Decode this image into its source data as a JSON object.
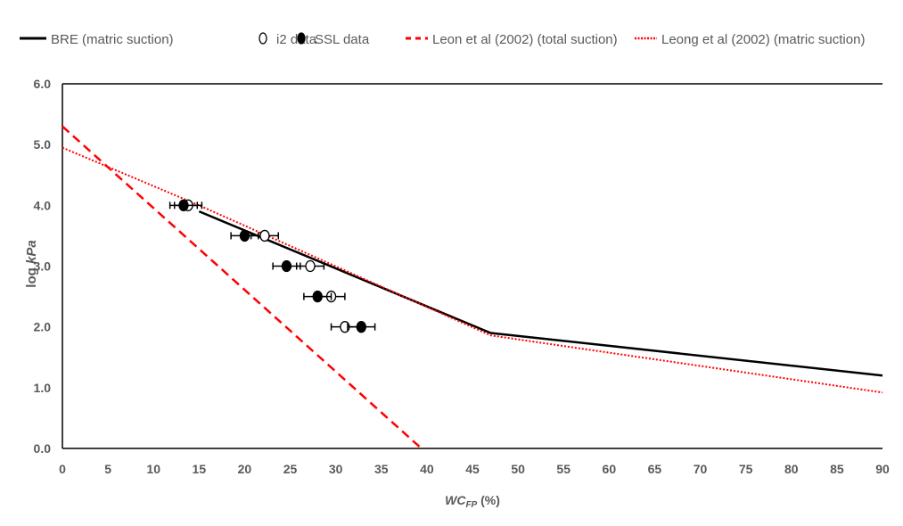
{
  "chart_data": {
    "type": "line",
    "title": "",
    "xlabel_main": "WC",
    "xlabel_sub": "FP",
    "xlabel_unit": " (%)",
    "ylabel": "log kPa",
    "xlim": [
      0,
      90
    ],
    "ylim": [
      0,
      6
    ],
    "xticks": [
      0,
      5,
      10,
      15,
      20,
      25,
      30,
      35,
      40,
      45,
      50,
      55,
      60,
      65,
      70,
      75,
      80,
      85,
      90
    ],
    "yticks": [
      "0.0",
      "1.0",
      "2.0",
      "3.0",
      "4.0",
      "5.0",
      "6.0"
    ],
    "grid": false,
    "legend_position": "top",
    "series": [
      {
        "name": "BRE (matric suction)",
        "kind": "line",
        "color": "#000000",
        "style": "solid",
        "x": [
          15,
          47,
          90
        ],
        "y": [
          3.9,
          1.9,
          1.2
        ]
      },
      {
        "name": "i2 data",
        "kind": "scatter",
        "marker": "open-circle",
        "color": "#000000",
        "x": [
          13.8,
          22.2,
          27.2,
          29.5,
          31.0
        ],
        "y": [
          4.0,
          3.5,
          3.0,
          2.5,
          2.0
        ],
        "xerr": 1.5
      },
      {
        "name": "SSL data",
        "kind": "scatter",
        "marker": "filled-circle",
        "color": "#000000",
        "x": [
          13.3,
          20.0,
          24.6,
          28.0,
          32.8
        ],
        "y": [
          4.0,
          3.5,
          3.0,
          2.5,
          2.0
        ],
        "xerr": 1.5
      },
      {
        "name": "Leon et al (2002) (total suction)",
        "kind": "line",
        "color": "#ff0000",
        "style": "dashed",
        "x": [
          0,
          39.4
        ],
        "y": [
          5.3,
          0.0
        ]
      },
      {
        "name": "Leong et al (2002) (matric suction)",
        "kind": "line",
        "color": "#ff0000",
        "style": "dotted",
        "x": [
          0,
          15,
          47,
          90
        ],
        "y": [
          4.95,
          4.0,
          1.86,
          0.92
        ]
      }
    ]
  }
}
